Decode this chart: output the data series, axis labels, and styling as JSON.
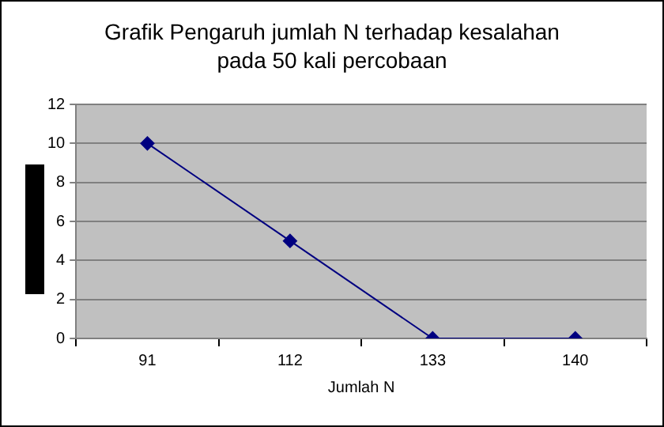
{
  "chart_data": {
    "type": "line",
    "title": "Grafik Pengaruh jumlah N terhadap kesalahan pada 50 kali percobaan",
    "xlabel": "Jumlah N",
    "categories": [
      "91",
      "112",
      "133",
      "140"
    ],
    "series": [
      {
        "color": "#000080",
        "values": [
          10,
          5,
          0,
          0
        ]
      }
    ],
    "ylim": [
      0,
      12
    ],
    "yticks": [
      0,
      2,
      4,
      6,
      8,
      10,
      12
    ],
    "grid": "y",
    "legend": false,
    "marker": "diamond",
    "line_style": "solid"
  }
}
